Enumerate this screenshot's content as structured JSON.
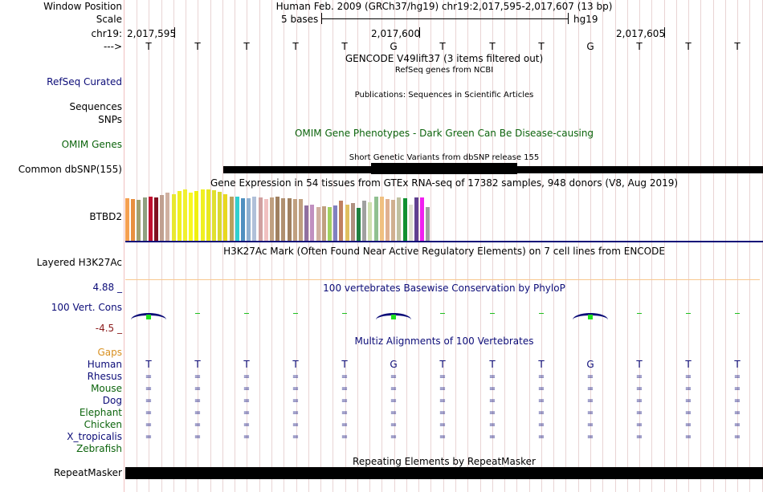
{
  "header": {
    "window_position_label": "Window Position",
    "window_position_value": "Human Feb. 2009 (GRCh37/hg19)   chr19:2,017,595-2,017,607 (13 bp)",
    "scale_label": "Scale",
    "scale_value": "5 bases",
    "assembly": "hg19",
    "chrom_label": "chr19:",
    "coords": [
      "2,017,595",
      "2,017,600",
      "2,017,605"
    ],
    "strand_arrow": "--->"
  },
  "sequence": [
    "T",
    "T",
    "T",
    "T",
    "T",
    "G",
    "T",
    "T",
    "T",
    "G",
    "T",
    "T",
    "T"
  ],
  "tracks": {
    "gencode_title": "GENCODE V49lift37 (3 items filtered out)",
    "refseq_subtitle": "RefSeq genes from NCBI",
    "refseq_label": "RefSeq Curated",
    "publications_title": "Publications: Sequences in Scientific Articles",
    "sequences_label": "Sequences",
    "snps_label": "SNPs",
    "omim_title": "OMIM Gene Phenotypes - Dark Green Can Be Disease-causing",
    "omim_label": "OMIM Genes",
    "dbsnp_title": "Short Genetic Variants from dbSNP release 155",
    "dbsnp_label": "Common dbSNP(155)",
    "gtex_title": "Gene Expression in 54 tissues from GTEx RNA-seq of 17382 samples, 948 donors (V8, Aug 2019)",
    "gtex_label": "BTBD2",
    "h3k27ac_title": "H3K27Ac Mark (Often Found Near Active Regulatory Elements) on 7 cell lines from ENCODE",
    "h3k27ac_label": "Layered H3K27Ac",
    "phylop_max": "4.88 _",
    "phylop_min": "-4.5 _",
    "phylop_title": "100 vertebrates Basewise Conservation by PhyloP",
    "phylop_label": "100 Vert. Cons",
    "multiz_title": "Multiz Alignments of 100 Vertebrates",
    "gaps_label": "Gaps",
    "species": [
      "Human",
      "Rhesus",
      "Mouse",
      "Dog",
      "Elephant",
      "Chicken",
      "X_tropicalis",
      "Zebrafish"
    ],
    "repeat_title": "Repeating Elements by RepeatMasker",
    "repeat_label": "RepeatMasker"
  },
  "gtex_values": [
    53,
    52,
    51,
    54,
    55,
    54,
    57,
    60,
    58,
    62,
    64,
    60,
    62,
    64,
    64,
    63,
    61,
    58,
    55,
    55,
    53,
    53,
    55,
    54,
    52,
    54,
    55,
    53,
    53,
    52,
    52,
    44,
    45,
    42,
    43,
    42,
    44,
    50,
    45,
    47,
    41,
    50,
    48,
    55,
    55,
    52,
    51,
    54,
    53,
    45,
    54,
    54,
    42
  ],
  "gtex_colors": [
    "#f5a050",
    "#e89040",
    "#a0a070",
    "#90a080",
    "#c01030",
    "#801020",
    "#c0a090",
    "#d0b0a0",
    "#e8e830",
    "#f0f020",
    "#f0f030",
    "#f8f820",
    "#f0f010",
    "#f0f020",
    "#e8e820",
    "#e0e030",
    "#d8d830",
    "#e8d820",
    "#b8a060",
    "#30d0d0",
    "#5090c0",
    "#90b0d0",
    "#b0c0d8",
    "#d0a0a0",
    "#f0c0c0",
    "#c0a080",
    "#a08060",
    "#b09070",
    "#a08060",
    "#c0a080",
    "#c0a080",
    "#9070a0",
    "#c090c0",
    "#d0b0a0",
    "#c0a080",
    "#a0d060",
    "#8080c0",
    "#c08060",
    "#e0c060",
    "#b09080",
    "#208040",
    "#a0a0a0",
    "#d0e0b0",
    "#90c090",
    "#f0c080",
    "#e0b090",
    "#d0b090",
    "#c0c0a0",
    "#109030",
    "#e0e0d0",
    "#604090",
    "#f020f0",
    "#a0a0a0"
  ]
}
